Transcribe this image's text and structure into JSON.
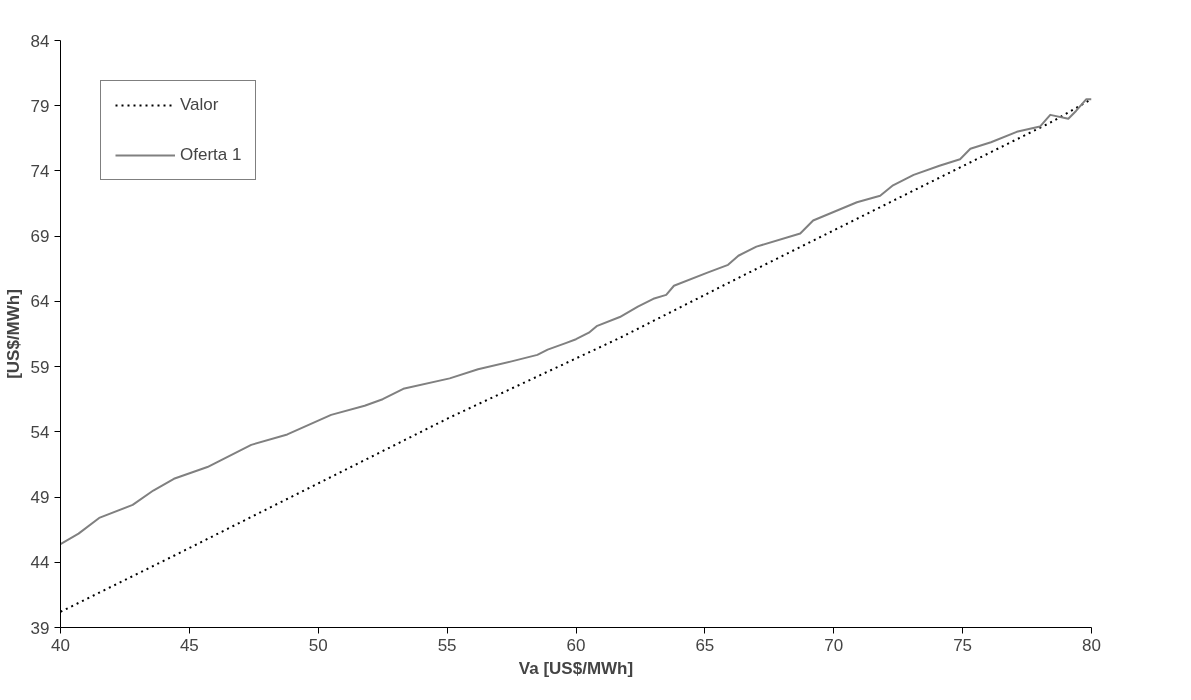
{
  "chart_data": {
    "type": "line",
    "xlabel": "Va [US$/MWh]",
    "ylabel": "[US$/MWh]",
    "xlim": [
      40,
      80
    ],
    "xticks": [
      40,
      45,
      50,
      55,
      60,
      65,
      70,
      75,
      80
    ],
    "ylim": [
      39,
      84
    ],
    "yticks": [
      39,
      44,
      49,
      54,
      59,
      64,
      69,
      74,
      79,
      84
    ],
    "grid": false,
    "legend": "top left",
    "series": [
      {
        "name": "Valor",
        "color": "#000000",
        "line_style": "dotted",
        "x": [
          40,
          44.4,
          55.1,
          61.7,
          66.3,
          73.1,
          78.4,
          80
        ],
        "values": [
          40.2,
          44.5,
          55.1,
          61.2,
          65.8,
          72.5,
          77.7,
          79.5
        ]
      },
      {
        "name": "Oferta 1",
        "color": "#808080",
        "line_style": "solid",
        "x": [
          40,
          40.7,
          41.5,
          42.8,
          43.6,
          44.4,
          45.7,
          47.4,
          48.8,
          50.5,
          51.8,
          52.5,
          53.3,
          55.1,
          56.2,
          57.5,
          58.5,
          58.9,
          59.6,
          60,
          60.5,
          60.8,
          61.7,
          62.4,
          63,
          63.5,
          63.8,
          65.1,
          65.9,
          66.3,
          67,
          68.7,
          69.2,
          70.9,
          71.8,
          72.3,
          73.1,
          74.1,
          74.9,
          75.3,
          76.1,
          77.1,
          78,
          78.4,
          79.1,
          79.4,
          79.8,
          80
        ],
        "values": [
          45.4,
          46.2,
          47.4,
          48.4,
          49.5,
          50.4,
          51.3,
          53,
          53.8,
          55.3,
          56,
          56.5,
          57.3,
          58.1,
          58.8,
          59.4,
          59.9,
          60.3,
          60.8,
          61.1,
          61.6,
          62.1,
          62.8,
          63.6,
          64.2,
          64.5,
          65.2,
          66.2,
          66.8,
          67.5,
          68.2,
          69.2,
          70.2,
          71.6,
          72.1,
          72.9,
          73.7,
          74.4,
          74.9,
          75.7,
          76.2,
          77,
          77.4,
          78.3,
          78,
          78.6,
          79.5,
          79.5
        ]
      }
    ]
  }
}
